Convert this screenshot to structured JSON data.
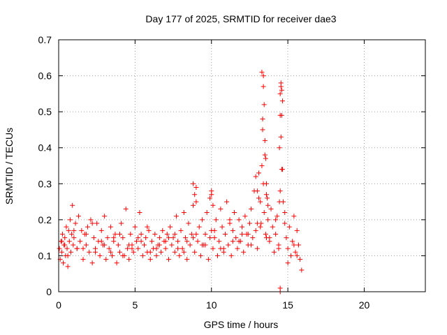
{
  "chart_data": {
    "type": "scatter",
    "title": "Day 177 of 2025, SRMTID for receiver dae3",
    "xlabel": "GPS time / hours",
    "ylabel": "SRMTID / TECUs",
    "xlim": [
      0,
      24
    ],
    "ylim": [
      0,
      0.7
    ],
    "xticks": [
      0,
      5,
      10,
      15,
      20
    ],
    "xtick_labels": [
      "0",
      "5",
      "10",
      "15",
      "20"
    ],
    "yticks": [
      0,
      0.1,
      0.2,
      0.3,
      0.4,
      0.5,
      0.6,
      0.7
    ],
    "ytick_labels": [
      "0",
      "0.1",
      "0.2",
      "0.3",
      "0.4",
      "0.5",
      "0.6",
      "0.7"
    ],
    "grid": true,
    "marker": "plus",
    "color": "#ff0000",
    "series": [
      {
        "name": "SRMTID",
        "x": [
          0.05,
          0.1,
          0.15,
          0.2,
          0.25,
          0.3,
          0.35,
          0.4,
          0.45,
          0.5,
          0.55,
          0.6,
          0.65,
          0.7,
          0.75,
          0.8,
          0.85,
          0.9,
          0.95,
          1.0,
          1.1,
          1.2,
          1.3,
          1.4,
          1.5,
          1.6,
          1.7,
          1.8,
          1.9,
          2.0,
          2.1,
          2.2,
          2.3,
          2.4,
          2.5,
          2.6,
          2.7,
          2.8,
          2.9,
          3.0,
          3.1,
          3.2,
          3.3,
          3.4,
          3.5,
          3.6,
          3.7,
          3.8,
          3.9,
          4.0,
          4.1,
          4.2,
          4.3,
          4.4,
          4.5,
          4.6,
          4.7,
          4.8,
          4.9,
          5.0,
          5.1,
          5.2,
          5.3,
          5.4,
          5.5,
          5.6,
          5.7,
          5.8,
          5.9,
          6.0,
          6.1,
          6.2,
          6.3,
          6.4,
          6.5,
          6.6,
          6.7,
          6.8,
          6.9,
          7.0,
          7.1,
          7.2,
          7.3,
          7.4,
          7.5,
          7.6,
          7.7,
          7.8,
          7.9,
          8.0,
          8.1,
          8.2,
          8.3,
          8.4,
          8.5,
          8.6,
          8.7,
          8.8,
          8.9,
          9.0,
          9.1,
          9.2,
          9.3,
          9.4,
          9.5,
          9.6,
          9.7,
          9.8,
          9.9,
          10.0,
          10.1,
          10.2,
          10.3,
          10.4,
          10.5,
          10.6,
          10.7,
          10.8,
          10.9,
          11.0,
          11.1,
          11.2,
          11.3,
          11.4,
          11.5,
          11.6,
          11.7,
          11.8,
          11.9,
          12.0,
          12.1,
          12.2,
          12.3,
          12.4,
          12.5,
          12.6,
          12.7,
          12.8,
          12.9,
          13.0,
          13.1,
          13.2,
          13.25,
          13.3,
          13.35,
          13.4,
          13.45,
          13.5,
          13.55,
          13.6,
          13.7,
          13.8,
          13.9,
          14.0,
          14.1,
          14.2,
          14.3,
          14.4,
          14.45,
          14.5,
          14.55,
          14.6,
          14.65,
          14.7,
          14.8,
          14.9,
          15.0,
          15.1,
          15.2,
          15.3,
          15.4,
          15.5,
          15.6,
          15.7,
          15.8,
          15.9,
          0.2,
          0.6,
          1.2,
          1.8,
          2.4,
          3.0,
          3.6,
          4.2,
          4.8,
          5.4,
          6.0,
          6.6,
          7.2,
          7.8,
          8.4,
          9.0,
          9.6,
          10.2,
          10.8,
          11.4,
          12.0,
          12.6,
          13.2,
          13.8,
          14.4,
          15.0,
          15.6,
          0.4,
          1.0,
          1.6,
          2.2,
          2.8,
          3.4,
          4.0,
          4.6,
          5.2,
          5.8,
          6.4,
          7.0,
          7.6,
          8.2,
          8.8,
          9.4,
          10.0,
          10.6,
          11.2,
          11.8,
          12.4,
          13.0,
          13.6,
          14.2,
          14.8,
          15.4,
          13.4,
          13.4,
          13.45,
          13.35,
          13.5,
          13.55,
          13.3,
          14.55,
          14.6,
          14.65,
          14.5,
          14.55,
          14.6,
          14.45,
          14.5,
          13.6,
          13.65,
          13.7,
          12.9,
          13.0,
          13.1,
          8.8,
          8.9,
          9.0,
          9.9,
          10.0,
          10.1,
          14.5,
          14.5
        ],
        "y": [
          0.12,
          0.09,
          0.14,
          0.11,
          0.16,
          0.08,
          0.13,
          0.15,
          0.1,
          0.18,
          0.12,
          0.07,
          0.17,
          0.14,
          0.2,
          0.11,
          0.16,
          0.24,
          0.13,
          0.15,
          0.19,
          0.12,
          0.21,
          0.14,
          0.17,
          0.09,
          0.16,
          0.13,
          0.18,
          0.11,
          0.2,
          0.08,
          0.15,
          0.12,
          0.19,
          0.14,
          0.1,
          0.17,
          0.13,
          0.21,
          0.09,
          0.15,
          0.12,
          0.18,
          0.1,
          0.14,
          0.16,
          0.08,
          0.13,
          0.11,
          0.19,
          0.15,
          0.1,
          0.23,
          0.12,
          0.09,
          0.16,
          0.13,
          0.11,
          0.18,
          0.14,
          0.12,
          0.22,
          0.16,
          0.1,
          0.13,
          0.15,
          0.11,
          0.17,
          0.09,
          0.14,
          0.12,
          0.16,
          0.1,
          0.13,
          0.15,
          0.11,
          0.17,
          0.14,
          0.12,
          0.16,
          0.09,
          0.18,
          0.13,
          0.15,
          0.11,
          0.21,
          0.14,
          0.1,
          0.17,
          0.12,
          0.22,
          0.15,
          0.09,
          0.19,
          0.13,
          0.16,
          0.24,
          0.11,
          0.29,
          0.14,
          0.18,
          0.1,
          0.2,
          0.13,
          0.16,
          0.22,
          0.09,
          0.15,
          0.27,
          0.12,
          0.17,
          0.2,
          0.1,
          0.14,
          0.23,
          0.18,
          0.11,
          0.16,
          0.25,
          0.13,
          0.19,
          0.1,
          0.17,
          0.22,
          0.15,
          0.12,
          0.2,
          0.14,
          0.18,
          0.11,
          0.21,
          0.16,
          0.13,
          0.19,
          0.23,
          0.15,
          0.28,
          0.17,
          0.12,
          0.33,
          0.25,
          0.19,
          0.61,
          0.45,
          0.3,
          0.22,
          0.38,
          0.16,
          0.27,
          0.2,
          0.14,
          0.23,
          0.18,
          0.11,
          0.16,
          0.21,
          0.13,
          0.4,
          0.55,
          0.57,
          0.49,
          0.34,
          0.25,
          0.19,
          0.15,
          0.12,
          0.18,
          0.1,
          0.14,
          0.21,
          0.11,
          0.17,
          0.13,
          0.09,
          0.06,
          0.14,
          0.1,
          0.12,
          0.16,
          0.11,
          0.13,
          0.15,
          0.1,
          0.12,
          0.14,
          0.11,
          0.13,
          0.15,
          0.12,
          0.14,
          0.16,
          0.13,
          0.15,
          0.12,
          0.14,
          0.16,
          0.13,
          0.18,
          0.15,
          0.12,
          0.08,
          0.1,
          0.13,
          0.17,
          0.12,
          0.19,
          0.14,
          0.11,
          0.16,
          0.13,
          0.15,
          0.18,
          0.12,
          0.14,
          0.16,
          0.11,
          0.15,
          0.13,
          0.17,
          0.12,
          0.2,
          0.14,
          0.16,
          0.19,
          0.15,
          0.2,
          0.22,
          0.13,
          0.6,
          0.57,
          0.52,
          0.48,
          0.42,
          0.37,
          0.35,
          0.58,
          0.56,
          0.53,
          0.49,
          0.43,
          0.34,
          0.25,
          0.28,
          0.3,
          0.26,
          0.24,
          0.32,
          0.28,
          0.26,
          0.3,
          0.27,
          0.25,
          0.26,
          0.28,
          0.24,
          0.0,
          0.01
        ]
      }
    ]
  }
}
